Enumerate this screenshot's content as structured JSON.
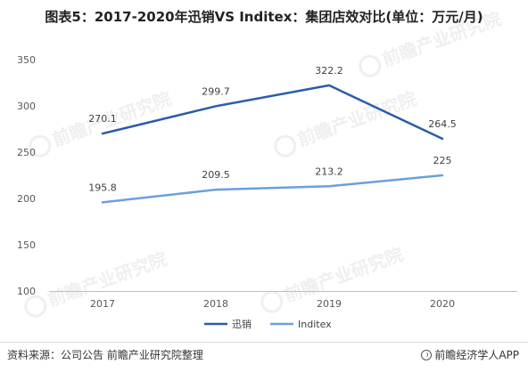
{
  "title": "图表5：2017-2020年迅销VS Inditex：集团店效对比(单位：万元/月)",
  "footer": {
    "source": "资料来源：公司公告 前瞻产业研究院整理",
    "brand": "前瞻经济学人APP",
    "brand_icon": "qianzhan-logo-icon"
  },
  "watermark": "前瞻产业研究院",
  "chart_data": {
    "type": "line",
    "categories": [
      "2017",
      "2018",
      "2019",
      "2020"
    ],
    "y_ticks": [
      "100",
      "150",
      "200",
      "250",
      "300",
      "350"
    ],
    "ylim": [
      100,
      350
    ],
    "grid": false,
    "legend_position": "bottom",
    "series": [
      {
        "name": "迅销",
        "values": [
          270.1,
          299.7,
          322.2,
          264.5
        ],
        "labels": [
          "270.1",
          "299.7",
          "322.2",
          "264.5"
        ],
        "color": "#2a5caa"
      },
      {
        "name": "Inditex",
        "values": [
          195.8,
          209.5,
          213.2,
          225
        ],
        "labels": [
          "195.8",
          "209.5",
          "213.2",
          "225"
        ],
        "color": "#6a9fdf"
      }
    ]
  }
}
